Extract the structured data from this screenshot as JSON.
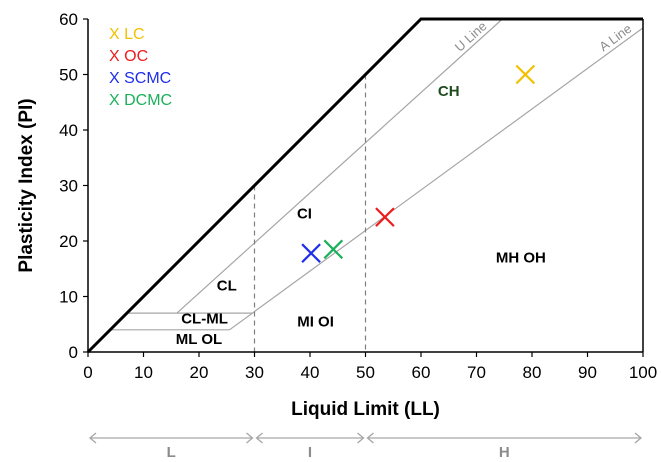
{
  "chart_data": {
    "type": "scatter",
    "xlabel": "Liquid Limit (LL)",
    "ylabel": "Plasticity Index (PI)",
    "xlim": [
      0,
      100
    ],
    "ylim": [
      0,
      60
    ],
    "x_ticks": [
      "0",
      "10",
      "20",
      "30",
      "40",
      "50",
      "60",
      "70",
      "80",
      "90",
      "100"
    ],
    "y_ticks": [
      "0",
      "10",
      "20",
      "30",
      "40",
      "50",
      "60"
    ],
    "series": [
      {
        "name": "LC",
        "color": "#f2c100",
        "marker": "x",
        "x": 78.8,
        "y": 50.0
      },
      {
        "name": "OC",
        "color": "#ee1c1c",
        "marker": "x",
        "x": 53.5,
        "y": 24.3
      },
      {
        "name": "SCMC",
        "color": "#1f2ee8",
        "marker": "x",
        "x": 40.2,
        "y": 17.8
      },
      {
        "name": "DCMC",
        "color": "#1ab05a",
        "marker": "x",
        "x": 44.2,
        "y": 18.5
      }
    ],
    "legend": {
      "position": "top-left",
      "entries": [
        "LC",
        "OC",
        "SCMC",
        "DCMC"
      ]
    },
    "lines": [
      {
        "label": "U Line",
        "equation": "PI = 0.9 (LL - 8)"
      },
      {
        "label": "A Line",
        "equation": "PI = 0.73 (LL - 20)"
      }
    ],
    "upper_boundary": [
      [
        0,
        0
      ],
      [
        60,
        60
      ],
      [
        100,
        60
      ]
    ],
    "dividers_x": [
      30,
      50
    ],
    "zone_labels": [
      {
        "text": "CL",
        "x": 25,
        "y": 12
      },
      {
        "text": "CL-ML",
        "x": 21,
        "y": 6
      },
      {
        "text": "ML OL",
        "x": 20,
        "y": 2.3
      },
      {
        "text": "CI",
        "x": 39,
        "y": 25
      },
      {
        "text": "MI OI",
        "x": 41,
        "y": 5.5
      },
      {
        "text": "CH",
        "x": 65,
        "y": 47
      },
      {
        "text": "MH OH",
        "x": 78,
        "y": 17
      }
    ],
    "ranges": [
      {
        "label": "L",
        "from": 0,
        "to": 30
      },
      {
        "label": "I",
        "from": 30,
        "to": 50
      },
      {
        "label": "H",
        "from": 50,
        "to": 100
      }
    ],
    "grid": false
  }
}
